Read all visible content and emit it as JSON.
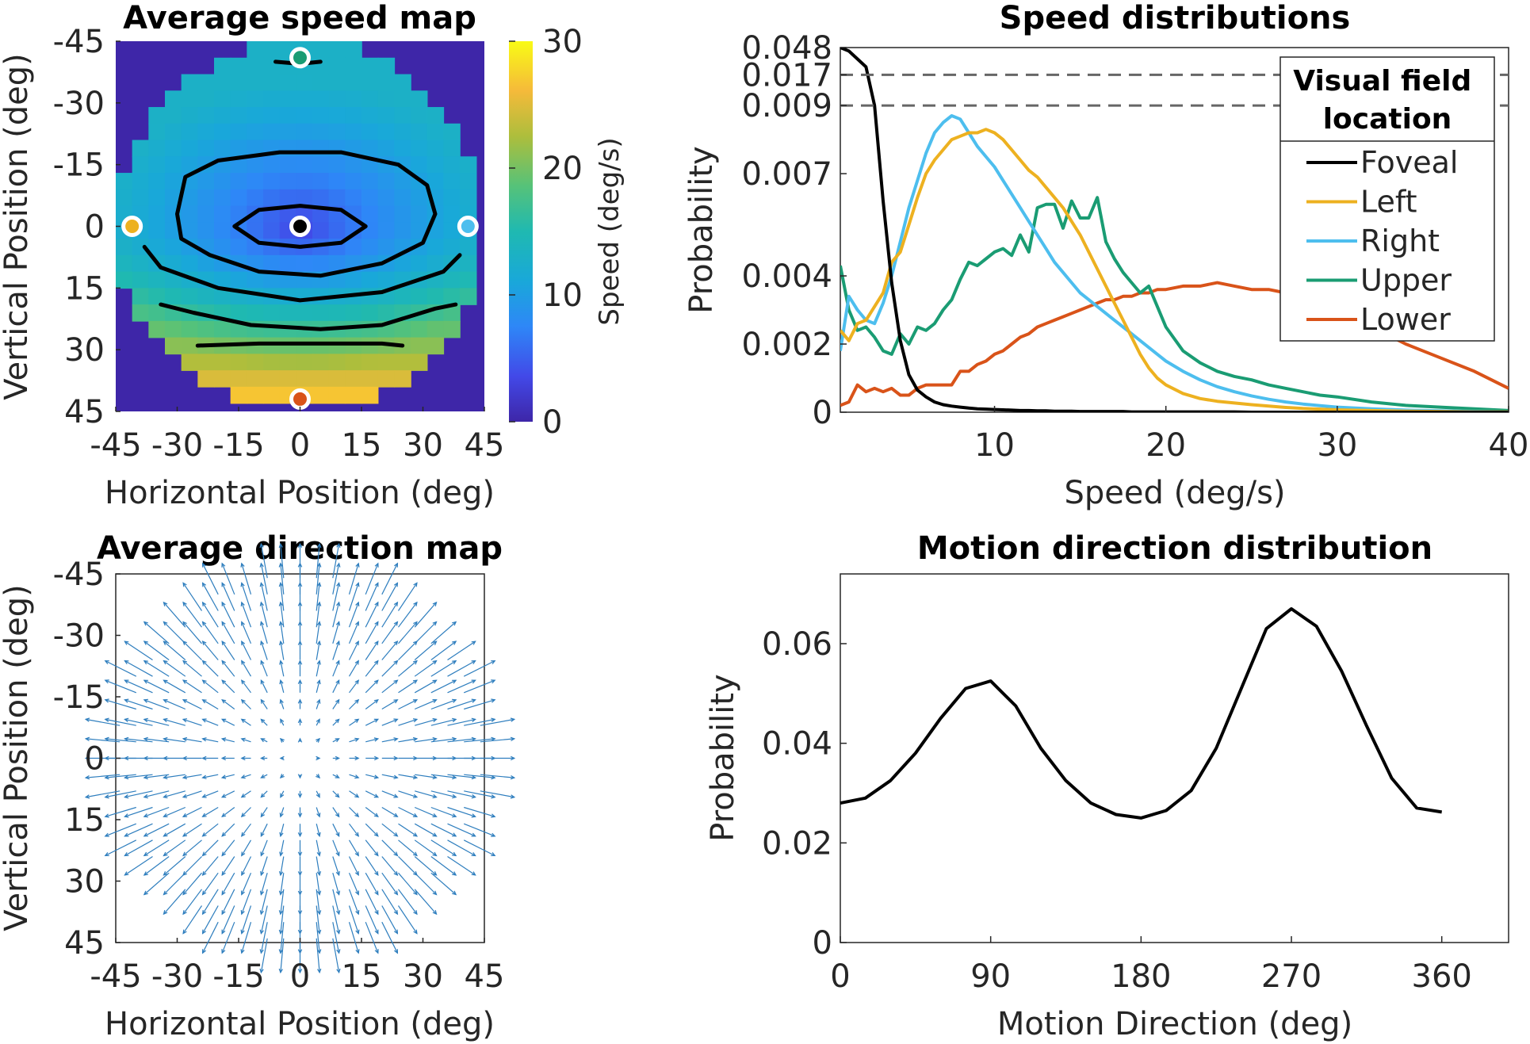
{
  "colors": {
    "foveal": "#000000",
    "left": "#EDB120",
    "right": "#4DBEEE",
    "upper": "#1A9C73",
    "lower": "#D95319",
    "quiver": "#2E7EBE",
    "map_background": "#3E26A8"
  },
  "chart_data": [
    {
      "type": "heatmap",
      "title": "Average speed map",
      "xlabel": "Horizontal Position (deg)",
      "ylabel": "Vertical Position (deg)",
      "xlim": [
        -45,
        45
      ],
      "ylim": [
        -45,
        45
      ],
      "y_reversed": true,
      "xticks": [
        "-45",
        "-30",
        "-15",
        "0",
        "15",
        "30",
        "45"
      ],
      "yticks": [
        "-45",
        "-30",
        "-15",
        "0",
        "15",
        "30",
        "45"
      ],
      "colorbar": {
        "label": "Speed (deg/s)",
        "range": [
          0,
          30
        ],
        "ticks": [
          "0",
          "10",
          "20",
          "30"
        ],
        "colormap": "parula"
      },
      "visual_field_radius_deg": 45,
      "speed_field": {
        "center_deg_s": 3,
        "upper_edge_deg_s": 13,
        "side_edge_deg_s": 13,
        "lower_edge_deg_s": 29
      },
      "location_markers": [
        {
          "location": "Foveal",
          "x": 0,
          "y": 0
        },
        {
          "location": "Left",
          "x": -41,
          "y": 0
        },
        {
          "location": "Right",
          "x": 41,
          "y": 0
        },
        {
          "location": "Upper",
          "x": 0,
          "y": -41
        },
        {
          "location": "Lower",
          "x": 0,
          "y": 42
        }
      ],
      "contours": [
        {
          "points": [
            [
              -6,
              -40
            ],
            [
              0,
              -39.5
            ],
            [
              5,
              -40
            ]
          ]
        },
        {
          "points": [
            [
              -16,
              0
            ],
            [
              -10,
              -4
            ],
            [
              0,
              -5
            ],
            [
              10,
              -4
            ],
            [
              16,
              0
            ],
            [
              10,
              4
            ],
            [
              0,
              5
            ],
            [
              -10,
              4
            ],
            [
              -16,
              0
            ]
          ]
        },
        {
          "points": [
            [
              -30,
              -3
            ],
            [
              -28,
              -12
            ],
            [
              -20,
              -16
            ],
            [
              -5,
              -18
            ],
            [
              10,
              -18
            ],
            [
              24,
              -15
            ],
            [
              31,
              -10
            ],
            [
              33,
              -3
            ],
            [
              30,
              4
            ],
            [
              20,
              9
            ],
            [
              5,
              12
            ],
            [
              -10,
              11
            ],
            [
              -22,
              7
            ],
            [
              -29,
              3
            ],
            [
              -30,
              -3
            ]
          ]
        },
        {
          "points": [
            [
              -38,
              5
            ],
            [
              -34,
              10
            ],
            [
              -20,
              15
            ],
            [
              0,
              18
            ],
            [
              20,
              16
            ],
            [
              35,
              11
            ],
            [
              39,
              7
            ]
          ]
        },
        {
          "points": [
            [
              -34,
              19
            ],
            [
              -26,
              21
            ],
            [
              -12,
              24
            ],
            [
              5,
              25
            ],
            [
              20,
              24
            ],
            [
              33,
              20
            ],
            [
              38,
              19
            ]
          ]
        },
        {
          "points": [
            [
              -25,
              29
            ],
            [
              -10,
              28.5
            ],
            [
              5,
              28.5
            ],
            [
              20,
              28.5
            ],
            [
              25,
              29
            ]
          ]
        }
      ]
    },
    {
      "type": "line",
      "title": "Speed distributions",
      "xlabel": "Speed (deg/s)",
      "ylabel": "Probability",
      "xlim": [
        1,
        40
      ],
      "xticks": [
        "10",
        "20",
        "30",
        "40"
      ],
      "yticks": [
        "0",
        "0.002",
        "0.004",
        "0.007",
        "0.009",
        "0.017",
        "0.048"
      ],
      "y_axis_break": true,
      "y_display_map": {
        "data_values": [
          0,
          0.009,
          0.017,
          0.048
        ],
        "tick_positions": [
          0,
          0.009,
          0.0099,
          0.0107
        ]
      },
      "break_lines_at": [
        0.017,
        0.009
      ],
      "legend": {
        "title": "Visual field location",
        "position": "top-right",
        "entries": [
          "Foveal",
          "Left",
          "Right",
          "Upper",
          "Lower"
        ]
      },
      "x": [
        1,
        1.5,
        2,
        2.5,
        3,
        3.5,
        4,
        4.5,
        5,
        5.5,
        6,
        6.5,
        7,
        7.5,
        8,
        8.5,
        9,
        9.5,
        10,
        10.5,
        11,
        11.5,
        12,
        12.5,
        13,
        13.5,
        14,
        14.5,
        15,
        15.5,
        16,
        16.5,
        17,
        17.5,
        18,
        18.5,
        19,
        19.5,
        20,
        21,
        22,
        23,
        24,
        25,
        26,
        27,
        28,
        29,
        30,
        32,
        34,
        36,
        38,
        40
      ],
      "series": [
        {
          "name": "Foveal",
          "color_key": "foveal",
          "values": [
            0.048,
            0.044,
            0.035,
            0.026,
            0.009,
            0.0062,
            0.0038,
            0.0021,
            0.0011,
            0.00065,
            0.00045,
            0.0003,
            0.00022,
            0.00018,
            0.00015,
            0.00012,
            0.0001,
            9e-05,
            8e-05,
            7e-05,
            6e-05,
            5e-05,
            5e-05,
            4e-05,
            4e-05,
            3e-05,
            3e-05,
            3e-05,
            2e-05,
            2e-05,
            2e-05,
            2e-05,
            2e-05,
            2e-05,
            1e-05,
            1e-05,
            1e-05,
            1e-05,
            1e-05,
            1e-05,
            1e-05,
            1e-05,
            1e-05,
            0,
            0,
            0,
            0,
            0,
            0,
            0,
            0,
            0,
            0,
            0
          ]
        },
        {
          "name": "Left",
          "color_key": "left",
          "values": [
            0.0024,
            0.0021,
            0.0026,
            0.0027,
            0.0031,
            0.0035,
            0.0044,
            0.0047,
            0.0055,
            0.0063,
            0.007,
            0.0074,
            0.0077,
            0.008,
            0.0081,
            0.0082,
            0.0082,
            0.0083,
            0.0082,
            0.008,
            0.0077,
            0.0074,
            0.0071,
            0.0069,
            0.0066,
            0.0063,
            0.006,
            0.0056,
            0.0052,
            0.0047,
            0.0042,
            0.0037,
            0.0032,
            0.0027,
            0.0022,
            0.0017,
            0.0013,
            0.001,
            0.0008,
            0.00055,
            0.0004,
            0.00032,
            0.00027,
            0.00022,
            0.00018,
            0.00014,
            0.00011,
            9e-05,
            7e-05,
            5e-05,
            3e-05,
            2e-05,
            1e-05,
            1e-05
          ]
        },
        {
          "name": "Right",
          "color_key": "right",
          "values": [
            0.0018,
            0.0034,
            0.003,
            0.0027,
            0.0026,
            0.0032,
            0.004,
            0.005,
            0.006,
            0.0068,
            0.0076,
            0.0082,
            0.0085,
            0.0087,
            0.0086,
            0.0082,
            0.0078,
            0.0075,
            0.0072,
            0.0068,
            0.0064,
            0.006,
            0.0056,
            0.0052,
            0.0048,
            0.0044,
            0.0041,
            0.0038,
            0.0035,
            0.0033,
            0.0031,
            0.0029,
            0.0027,
            0.0025,
            0.0023,
            0.0021,
            0.0019,
            0.0017,
            0.0015,
            0.0012,
            0.00095,
            0.00075,
            0.0006,
            0.00048,
            0.00038,
            0.0003,
            0.00024,
            0.00019,
            0.00015,
            0.0001,
            6e-05,
            4e-05,
            2e-05,
            1e-05
          ]
        },
        {
          "name": "Upper",
          "color_key": "upper",
          "values": [
            0.0043,
            0.003,
            0.0024,
            0.0025,
            0.0022,
            0.0018,
            0.0017,
            0.0023,
            0.002,
            0.0025,
            0.0024,
            0.0026,
            0.003,
            0.0033,
            0.0039,
            0.0044,
            0.0043,
            0.0045,
            0.0047,
            0.0048,
            0.0046,
            0.0052,
            0.0047,
            0.006,
            0.0061,
            0.0061,
            0.0054,
            0.0062,
            0.0057,
            0.0057,
            0.0063,
            0.005,
            0.0045,
            0.0041,
            0.0038,
            0.0035,
            0.0037,
            0.0031,
            0.0025,
            0.0018,
            0.00145,
            0.0012,
            0.00105,
            0.00095,
            0.0008,
            0.0007,
            0.0006,
            0.0005,
            0.00045,
            0.0003,
            0.0002,
            0.00015,
            0.0001,
            5e-05
          ]
        },
        {
          "name": "Lower",
          "color_key": "lower",
          "values": [
            0.0002,
            0.0003,
            0.0008,
            0.0006,
            0.0007,
            0.0006,
            0.0007,
            0.0005,
            0.0005,
            0.0007,
            0.0008,
            0.0008,
            0.0008,
            0.0008,
            0.0012,
            0.0012,
            0.0014,
            0.0015,
            0.0017,
            0.0018,
            0.002,
            0.0022,
            0.0023,
            0.0025,
            0.0026,
            0.0027,
            0.0028,
            0.0029,
            0.003,
            0.0031,
            0.0032,
            0.0033,
            0.0033,
            0.0034,
            0.0034,
            0.0035,
            0.0035,
            0.0036,
            0.0036,
            0.0037,
            0.0037,
            0.0038,
            0.0037,
            0.0036,
            0.0036,
            0.0035,
            0.0034,
            0.0032,
            0.003,
            0.0025,
            0.002,
            0.0016,
            0.0012,
            0.0007
          ]
        }
      ]
    },
    {
      "type": "quiver",
      "title": "Average direction map",
      "xlabel": "Horizontal Position (deg)",
      "ylabel": "Vertical Position (deg)",
      "xlim": [
        -45,
        45
      ],
      "ylim": [
        -45,
        45
      ],
      "y_reversed": true,
      "xticks": [
        "-45",
        "-30",
        "-15",
        "0",
        "15",
        "30",
        "45"
      ],
      "yticks": [
        "-45",
        "-30",
        "-15",
        "0",
        "15",
        "30",
        "45"
      ],
      "grid_step_deg": 4,
      "field_radius_deg": 45,
      "pattern": "radial expansion from the center",
      "arrow_length_deg": {
        "at_center": 0,
        "at_edge": 8.5
      }
    },
    {
      "type": "line",
      "title": "Motion direction distribution",
      "xlabel": "Motion Direction (deg)",
      "ylabel": "Probability",
      "xlim": [
        0,
        400
      ],
      "ylim": [
        0,
        0.074
      ],
      "xticks": [
        "0",
        "90",
        "180",
        "270",
        "360"
      ],
      "yticks": [
        "0",
        "0.02",
        "0.04",
        "0.06"
      ],
      "x": [
        0,
        15,
        30,
        45,
        60,
        75,
        90,
        105,
        120,
        135,
        150,
        165,
        180,
        195,
        210,
        225,
        240,
        255,
        270,
        285,
        300,
        315,
        330,
        345,
        360
      ],
      "series": [
        {
          "color_key": "foveal",
          "values": [
            0.028,
            0.029,
            0.0325,
            0.038,
            0.045,
            0.051,
            0.0525,
            0.0475,
            0.039,
            0.0325,
            0.028,
            0.0257,
            0.025,
            0.0265,
            0.0305,
            0.039,
            0.051,
            0.063,
            0.067,
            0.0635,
            0.0545,
            0.0435,
            0.033,
            0.027,
            0.0262
          ]
        }
      ]
    }
  ]
}
